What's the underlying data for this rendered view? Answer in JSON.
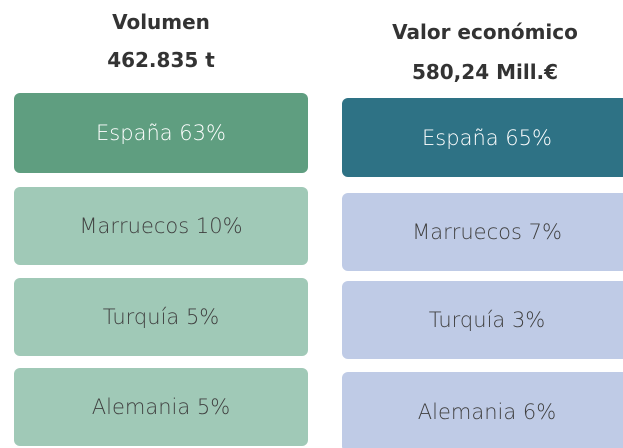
{
  "columns": [
    {
      "title": "Volumen",
      "subtitle": "462.835 t",
      "items": [
        "España 63%",
        "Marruecos 10%",
        "Turquía 5%",
        "Alemania 5%"
      ]
    },
    {
      "title": "Valor económico",
      "subtitle": "580,24 Mill.€",
      "items": [
        "España 65%",
        "Marruecos 7%",
        "Turquía 3%",
        "Alemania 6%"
      ]
    }
  ]
}
